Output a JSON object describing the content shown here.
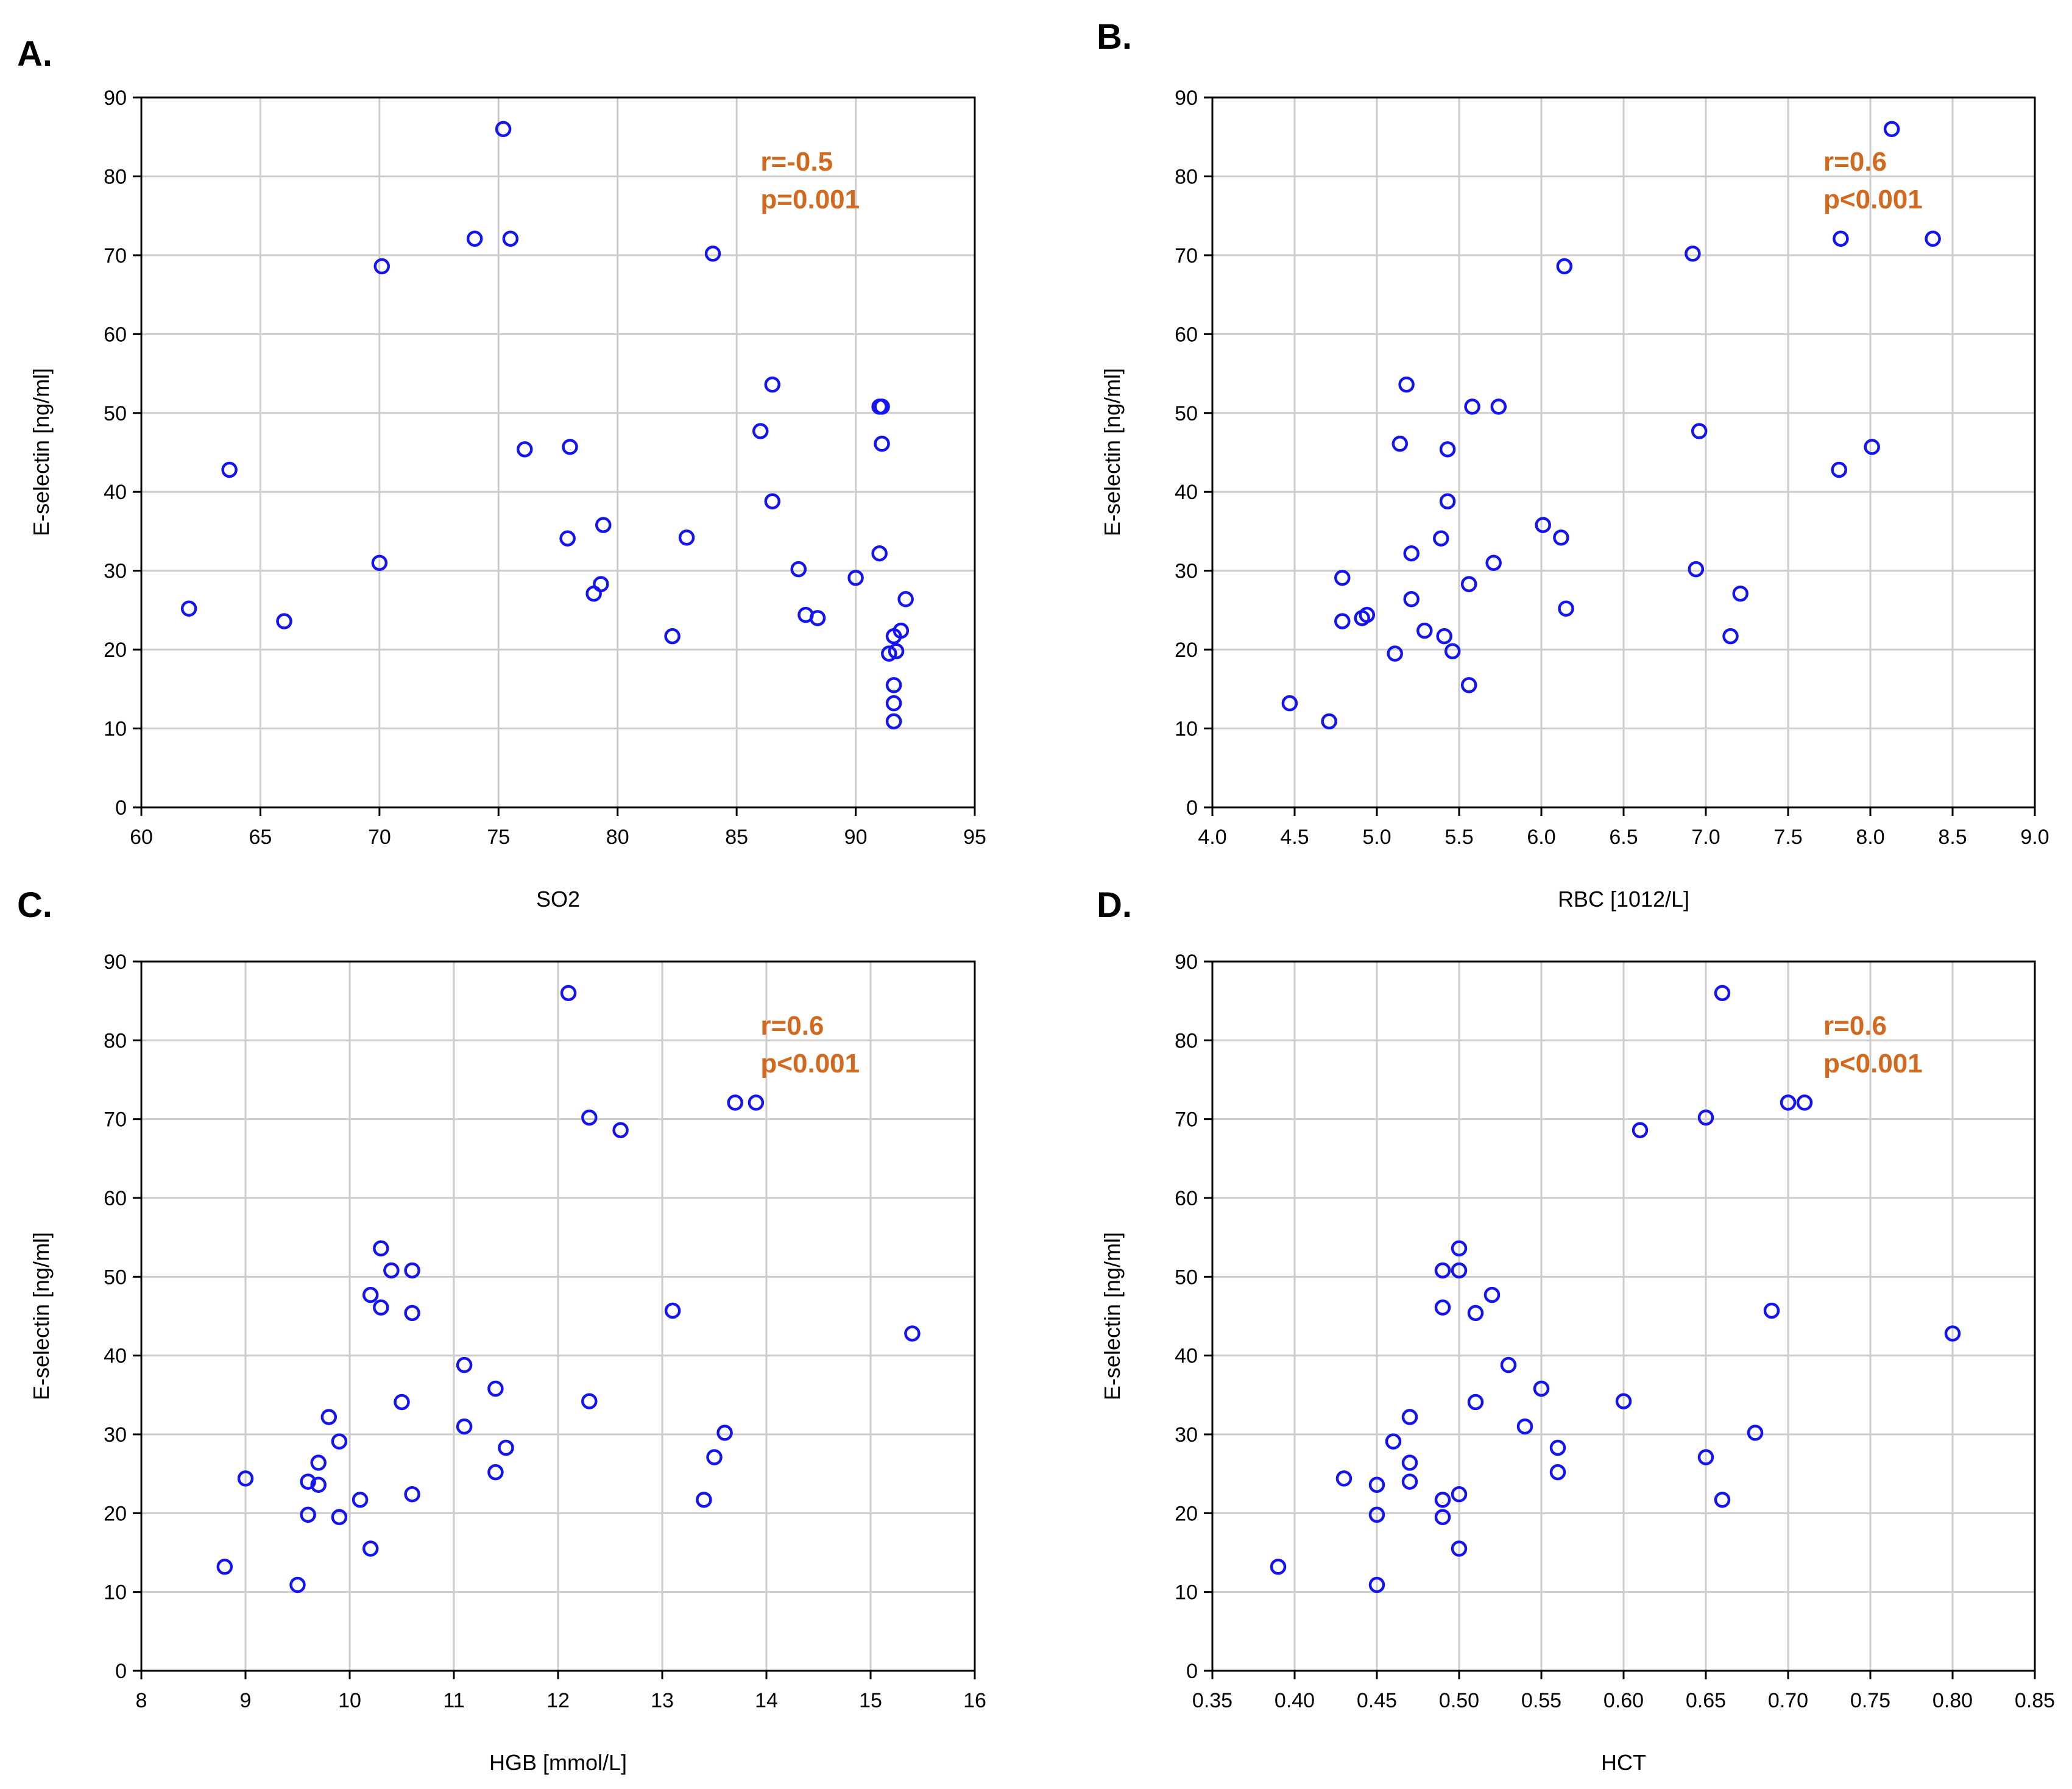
{
  "figure": {
    "panel_labels": [
      "A.",
      "B.",
      "C.",
      "D."
    ]
  },
  "colors": {
    "marker": "#1414f0",
    "annotation": "#d2691e",
    "grid": "#cccccc",
    "axis": "#000000"
  },
  "chart_data": [
    {
      "type": "scatter",
      "panel": "A.",
      "xlabel": "SO2",
      "ylabel": "E-selectin [ng/ml]",
      "xlim": [
        60,
        95
      ],
      "ylim": [
        0,
        90
      ],
      "xticks": [
        60,
        65,
        70,
        75,
        80,
        85,
        90,
        95
      ],
      "xtick_labels": [
        "60",
        "65",
        "70",
        "75",
        "80",
        "85",
        "90",
        "95"
      ],
      "yticks": [
        0,
        10,
        20,
        30,
        40,
        50,
        60,
        70,
        80,
        90
      ],
      "annotation": [
        "r=-0.5",
        "p=0.001"
      ],
      "grid": true,
      "x": [
        62.0,
        63.7,
        66.0,
        70.0,
        70.1,
        74.0,
        75.2,
        75.5,
        76.1,
        77.9,
        78.0,
        79.0,
        79.3,
        79.4,
        82.3,
        82.9,
        84.0,
        86.0,
        86.5,
        86.5,
        87.6,
        87.9,
        88.4,
        90.0,
        91.0,
        91.1,
        91.0,
        91.1,
        91.4,
        91.6,
        91.7,
        91.9,
        92.1,
        91.6,
        91.6,
        91.6
      ],
      "y": [
        25.2,
        42.8,
        23.6,
        31.0,
        68.6,
        72.1,
        86.0,
        72.1,
        45.4,
        34.1,
        45.7,
        27.1,
        28.3,
        35.8,
        21.7,
        34.2,
        70.2,
        47.7,
        53.6,
        38.8,
        30.2,
        24.4,
        24.0,
        29.1,
        50.8,
        50.8,
        32.2,
        46.1,
        19.5,
        21.7,
        19.8,
        22.4,
        26.4,
        15.5,
        13.2,
        10.9
      ]
    },
    {
      "type": "scatter",
      "panel": "B.",
      "xlabel": "RBC [1012/L]",
      "ylabel": "E-selectin [ng/ml]",
      "xlim": [
        4.0,
        9.0
      ],
      "ylim": [
        0,
        90
      ],
      "xticks": [
        4.0,
        4.5,
        5.0,
        5.5,
        6.0,
        6.5,
        7.0,
        7.5,
        8.0,
        8.5,
        9.0
      ],
      "xtick_labels": [
        "4.0",
        "4.5",
        "5.0",
        "5.5",
        "6.0",
        "6.5",
        "7.0",
        "7.5",
        "8.0",
        "8.5",
        "9.0"
      ],
      "yticks": [
        0,
        10,
        20,
        30,
        40,
        50,
        60,
        70,
        80,
        90
      ],
      "annotation": [
        "r=0.6",
        "p<0.001"
      ],
      "grid": true,
      "x": [
        4.47,
        4.71,
        4.79,
        4.79,
        4.91,
        4.94,
        5.11,
        5.14,
        5.18,
        5.21,
        5.21,
        5.29,
        5.39,
        5.41,
        5.43,
        5.43,
        5.46,
        5.56,
        5.56,
        5.58,
        5.71,
        5.74,
        6.01,
        6.12,
        6.14,
        6.15,
        6.92,
        6.94,
        6.96,
        7.15,
        7.21,
        7.81,
        7.82,
        8.01,
        8.13,
        8.38
      ],
      "y": [
        13.2,
        10.9,
        29.1,
        23.6,
        24.0,
        24.4,
        19.5,
        46.1,
        53.6,
        32.2,
        26.4,
        22.4,
        34.1,
        21.7,
        45.4,
        38.8,
        19.8,
        15.5,
        28.3,
        50.8,
        31.0,
        50.8,
        35.8,
        34.2,
        68.6,
        25.2,
        70.2,
        30.2,
        47.7,
        21.7,
        27.1,
        42.8,
        72.1,
        45.7,
        86.0,
        72.1
      ]
    },
    {
      "type": "scatter",
      "panel": "C.",
      "xlabel": "HGB [mmol/L]",
      "ylabel": "E-selectin [ng/ml]",
      "xlim": [
        8,
        16
      ],
      "ylim": [
        0,
        90
      ],
      "xticks": [
        8,
        9,
        10,
        11,
        12,
        13,
        14,
        15,
        16
      ],
      "xtick_labels": [
        "8",
        "9",
        "10",
        "11",
        "12",
        "13",
        "14",
        "15",
        "16"
      ],
      "yticks": [
        0,
        10,
        20,
        30,
        40,
        50,
        60,
        70,
        80,
        90
      ],
      "annotation": [
        "r=0.6",
        "p<0.001"
      ],
      "grid": true,
      "x": [
        8.8,
        9.0,
        9.5,
        9.6,
        9.6,
        9.7,
        9.7,
        9.8,
        9.9,
        9.9,
        10.1,
        10.2,
        10.2,
        10.3,
        10.3,
        10.4,
        10.5,
        10.6,
        10.6,
        10.6,
        11.1,
        11.1,
        11.4,
        11.4,
        11.5,
        12.1,
        12.3,
        12.3,
        12.6,
        13.1,
        13.4,
        13.5,
        13.6,
        13.7,
        13.9,
        15.4
      ],
      "y": [
        13.2,
        24.4,
        10.9,
        19.8,
        24.0,
        26.4,
        23.6,
        32.2,
        29.1,
        19.5,
        21.7,
        15.5,
        47.7,
        46.1,
        53.6,
        50.8,
        34.1,
        50.8,
        45.4,
        22.4,
        38.8,
        31.0,
        35.8,
        25.2,
        28.3,
        86.0,
        70.2,
        34.2,
        68.6,
        45.7,
        21.7,
        27.1,
        30.2,
        72.1,
        72.1,
        42.8
      ]
    },
    {
      "type": "scatter",
      "panel": "D.",
      "xlabel": "HCT",
      "ylabel": "E-selectin [ng/ml]",
      "xlim": [
        0.35,
        0.85
      ],
      "ylim": [
        0,
        90
      ],
      "xticks": [
        0.35,
        0.4,
        0.45,
        0.5,
        0.55,
        0.6,
        0.65,
        0.7,
        0.75,
        0.8,
        0.85
      ],
      "xtick_labels": [
        "0.35",
        "0.40",
        "0.45",
        "0.50",
        "0.55",
        "0.60",
        "0.65",
        "0.70",
        "0.75",
        "0.80",
        "0.85"
      ],
      "yticks": [
        0,
        10,
        20,
        30,
        40,
        50,
        60,
        70,
        80,
        90
      ],
      "annotation": [
        "r=0.6",
        "p<0.001"
      ],
      "grid": true,
      "x": [
        0.39,
        0.43,
        0.45,
        0.45,
        0.45,
        0.46,
        0.47,
        0.47,
        0.47,
        0.49,
        0.49,
        0.49,
        0.49,
        0.5,
        0.5,
        0.5,
        0.5,
        0.51,
        0.51,
        0.52,
        0.53,
        0.54,
        0.55,
        0.56,
        0.56,
        0.6,
        0.61,
        0.65,
        0.65,
        0.66,
        0.66,
        0.68,
        0.69,
        0.7,
        0.71,
        0.8
      ],
      "y": [
        13.2,
        24.4,
        10.9,
        19.8,
        23.6,
        29.1,
        32.2,
        26.4,
        24.0,
        21.7,
        19.5,
        50.8,
        46.1,
        53.6,
        50.8,
        22.4,
        15.5,
        45.4,
        34.1,
        47.7,
        38.8,
        31.0,
        35.8,
        28.3,
        25.2,
        34.2,
        68.6,
        70.2,
        27.1,
        86.0,
        21.7,
        30.2,
        45.7,
        72.1,
        72.1,
        42.8
      ]
    }
  ]
}
